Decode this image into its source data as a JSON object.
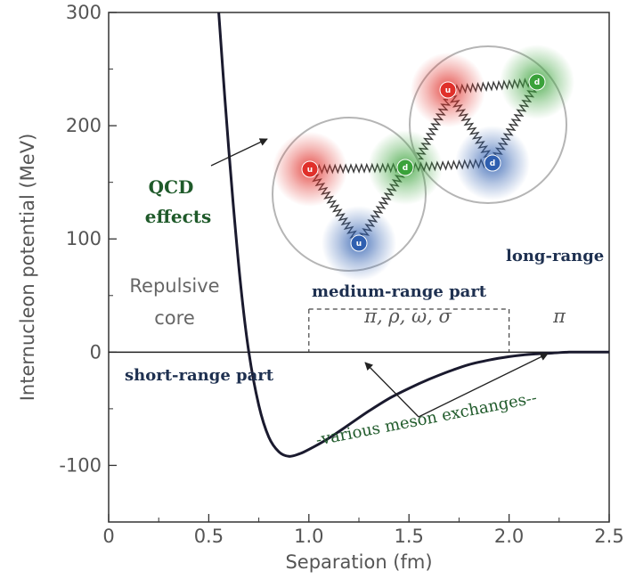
{
  "chart_data": {
    "type": "line",
    "xlabel": "Separation (fm)",
    "ylabel": "Internucleon potential (MeV)",
    "xlim": [
      0,
      2.5
    ],
    "ylim": [
      -150,
      300
    ],
    "x_ticks": [
      "0",
      "0.5",
      "1.0",
      "1.5",
      "2.0",
      "2.5"
    ],
    "y_ticks": [
      "300",
      "200",
      "100",
      "0",
      "-100"
    ],
    "series": [
      {
        "color": "#1a1a2e",
        "x": [
          0.55,
          0.58,
          0.62,
          0.66,
          0.7,
          0.75,
          0.8,
          0.85,
          0.9,
          0.95,
          1.0,
          1.1,
          1.2,
          1.3,
          1.4,
          1.5,
          1.6,
          1.7,
          1.8,
          1.9,
          2.0,
          2.1,
          2.2,
          2.3,
          2.4,
          2.5
        ],
        "y": [
          300,
          225,
          135,
          58,
          0,
          -47,
          -75,
          -88,
          -92,
          -90,
          -86,
          -76,
          -64,
          -52,
          -41,
          -32,
          -24,
          -17,
          -11,
          -7,
          -4,
          -2,
          -1,
          0,
          0,
          0
        ]
      }
    ],
    "regions": {
      "core": [
        "Repulsive",
        "core"
      ],
      "medium": "π, ρ, ω, σ",
      "long": "π"
    },
    "annotations": {
      "qcd": [
        "QCD",
        "effects"
      ],
      "long_range": "long-range",
      "medium_range": "medium-range part",
      "short_range": "short-range part",
      "meson": "-various meson exchanges--"
    },
    "quarks": {
      "left": [
        "u",
        "d",
        "u"
      ],
      "right": [
        "u",
        "d",
        "d"
      ],
      "colors": {
        "red": "#e0302a",
        "green": "#3aa23a",
        "blue": "#2f5fb0"
      }
    }
  }
}
